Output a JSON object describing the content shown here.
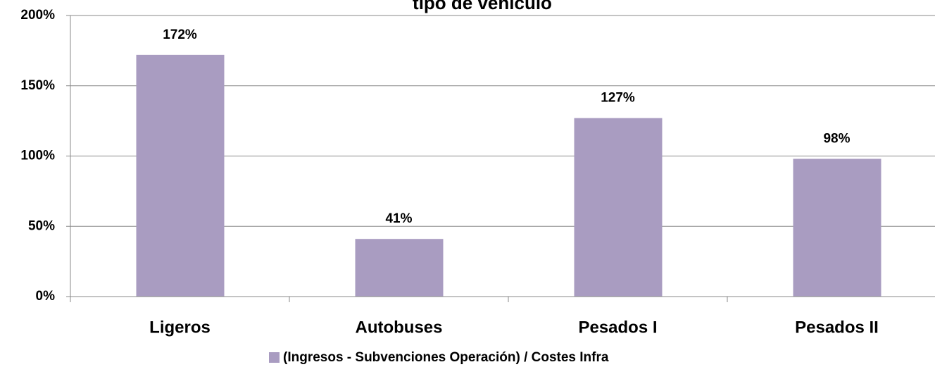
{
  "chart_data": {
    "type": "bar",
    "title": "tipo de vehículo",
    "categories": [
      "Ligeros",
      "Autobuses",
      "Pesados I",
      "Pesados II"
    ],
    "series": [
      {
        "name": "(Ingresos - Subvenciones Operación) / Costes Infra",
        "color": "#a99cc1",
        "values": [
          172,
          41,
          127,
          98
        ],
        "value_labels": [
          "172%",
          "41%",
          "127%",
          "98%"
        ]
      }
    ],
    "ylim": [
      0,
      200
    ],
    "yticks": [
      {
        "value": 0,
        "label": "0%"
      },
      {
        "value": 50,
        "label": "50%"
      },
      {
        "value": 100,
        "label": "100%"
      },
      {
        "value": 150,
        "label": "150%"
      },
      {
        "value": 200,
        "label": "200%"
      }
    ],
    "grid": true,
    "legend": "bottom"
  }
}
